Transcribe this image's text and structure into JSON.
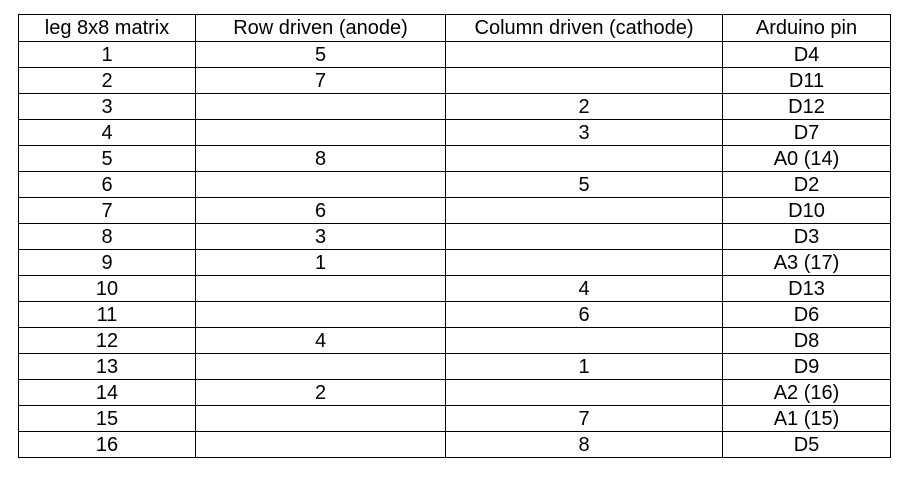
{
  "table": {
    "headers": [
      "leg 8x8 matrix",
      "Row driven (anode)",
      "Column driven (cathode)",
      "Arduino pin"
    ],
    "rows": [
      [
        "1",
        "5",
        "",
        "D4"
      ],
      [
        "2",
        "7",
        "",
        "D11"
      ],
      [
        "3",
        "",
        "2",
        "D12"
      ],
      [
        "4",
        "",
        "3",
        "D7"
      ],
      [
        "5",
        "8",
        "",
        "A0 (14)"
      ],
      [
        "6",
        "",
        "5",
        "D2"
      ],
      [
        "7",
        "6",
        "",
        "D10"
      ],
      [
        "8",
        "3",
        "",
        "D3"
      ],
      [
        "9",
        "1",
        "",
        "A3 (17)"
      ],
      [
        "10",
        "",
        "4",
        "D13"
      ],
      [
        "11",
        "",
        "6",
        "D6"
      ],
      [
        "12",
        "4",
        "",
        "D8"
      ],
      [
        "13",
        "",
        "1",
        "D9"
      ],
      [
        "14",
        "2",
        "",
        "A2 (16)"
      ],
      [
        "15",
        "",
        "7",
        "A1 (15)"
      ],
      [
        "16",
        "",
        "8",
        "D5"
      ]
    ]
  }
}
